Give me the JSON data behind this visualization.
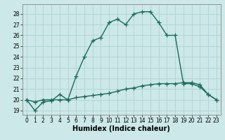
{
  "title": "",
  "xlabel": "Humidex (Indice chaleur)",
  "x_ticks": [
    0,
    1,
    2,
    3,
    4,
    5,
    6,
    7,
    8,
    9,
    10,
    11,
    12,
    13,
    14,
    15,
    16,
    17,
    18,
    19,
    20,
    21,
    22,
    23
  ],
  "y_ticks": [
    19,
    20,
    21,
    22,
    23,
    24,
    25,
    26,
    27,
    28
  ],
  "ylim": [
    18.6,
    28.9
  ],
  "xlim": [
    -0.5,
    23.5
  ],
  "curve1_x": [
    0,
    1,
    2,
    3,
    4,
    5,
    6,
    7,
    8,
    9,
    10,
    11,
    12,
    13,
    14,
    15,
    16,
    17,
    18,
    19,
    20,
    21,
    22,
    23
  ],
  "curve1_y": [
    20.0,
    19.0,
    19.8,
    19.9,
    20.5,
    20.0,
    22.2,
    24.0,
    25.5,
    25.8,
    27.2,
    27.5,
    27.0,
    28.0,
    28.2,
    28.2,
    27.2,
    26.0,
    26.0,
    21.5,
    21.5,
    21.2,
    20.5,
    20.0
  ],
  "curve2_x": [
    0,
    1,
    2,
    3,
    4,
    5,
    6,
    7,
    8,
    9,
    10,
    11,
    12,
    13,
    14,
    15,
    16,
    17,
    18,
    19,
    20,
    21,
    22,
    23
  ],
  "curve2_y": [
    20.0,
    19.8,
    20.0,
    20.0,
    20.0,
    20.0,
    20.2,
    20.3,
    20.4,
    20.5,
    20.6,
    20.8,
    21.0,
    21.1,
    21.3,
    21.4,
    21.5,
    21.5,
    21.5,
    21.6,
    21.6,
    21.4,
    20.5,
    20.0
  ],
  "line_color": "#1a6b5a",
  "bg_color": "#cce8e8",
  "grid_color": "#aacfcf",
  "marker": "+",
  "marker_size": 4,
  "linewidth": 1.0,
  "tick_fontsize": 5.5,
  "xlabel_fontsize": 7
}
